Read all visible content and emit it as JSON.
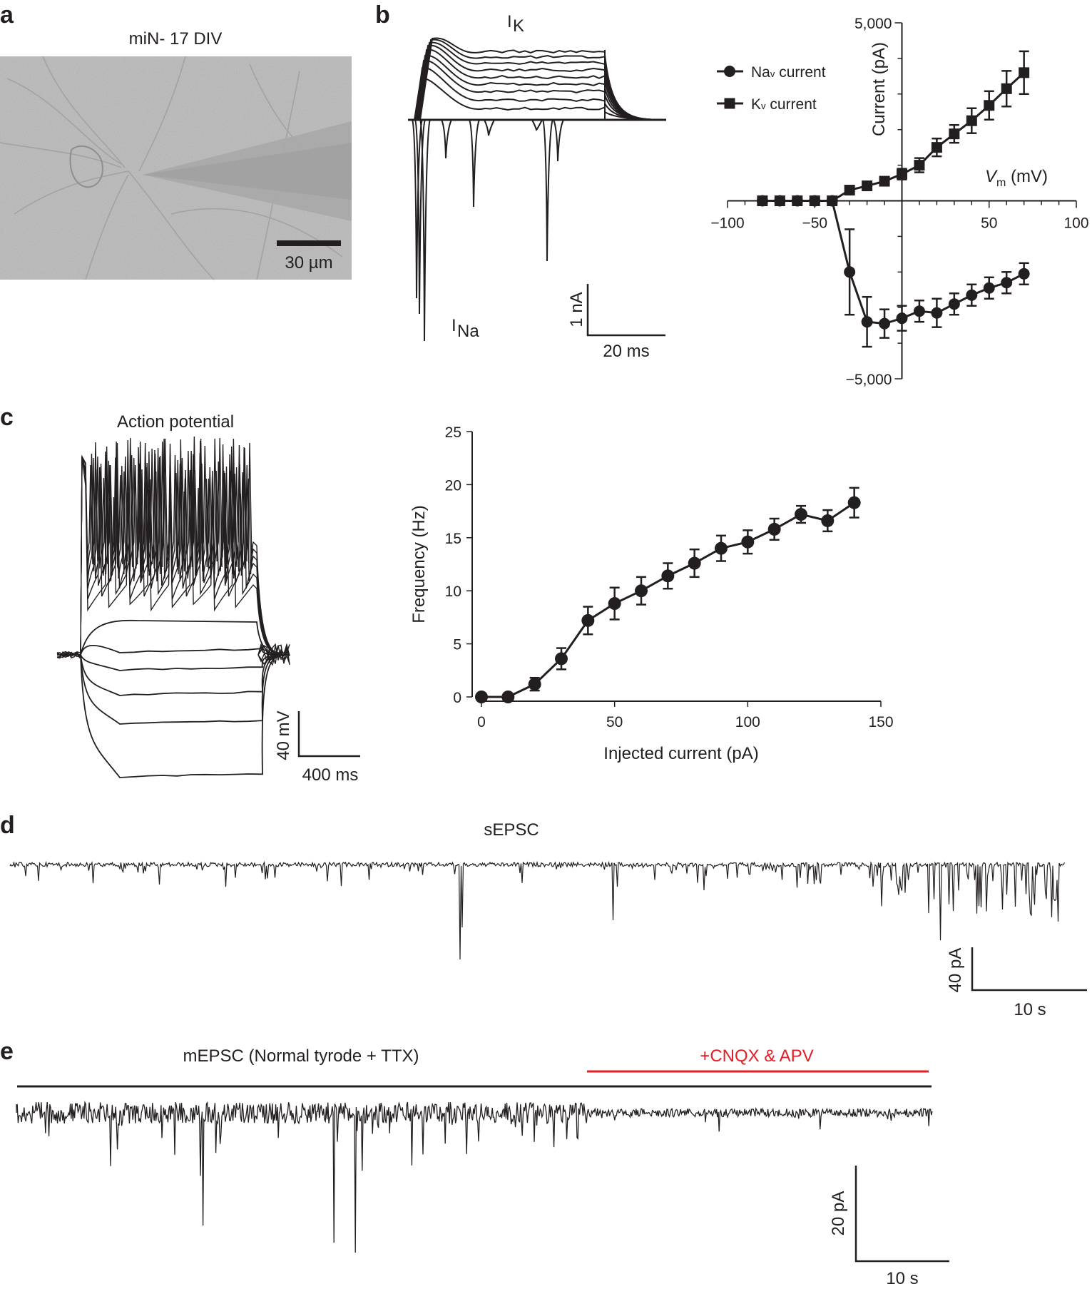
{
  "panels": {
    "a": {
      "label": "a",
      "title": "miN- 17 DIV",
      "scalebar": "30 µm"
    },
    "b": {
      "label": "b",
      "trace_ik_label": "I",
      "trace_ik_sub": "K",
      "trace_ina_label": "I",
      "trace_ina_sub": "Na",
      "scalebar_y": "1 nA",
      "scalebar_x": "20 ms"
    },
    "c": {
      "label": "c",
      "title": "Action potential",
      "scalebar_y": "40 mV",
      "scalebar_x": "400 ms"
    },
    "d": {
      "label": "d",
      "title": "sEPSC",
      "scalebar_y": "40 pA",
      "scalebar_x": "10 s"
    },
    "e": {
      "label": "e",
      "title": "mEPSC (Normal tyrode + TTX)",
      "drug_label": "+CNQX & APV",
      "drug_color": "#e31e24",
      "scalebar_y": "20 pA",
      "scalebar_x": "10 s"
    }
  },
  "colors": {
    "ink": "#231f20",
    "accent": "#e31e24",
    "image_bg": "#b9b9b9"
  },
  "chart_data": [
    {
      "id": "iv",
      "type": "line",
      "xlabel_main": "V",
      "xlabel_sub": "m",
      "xlabel_unit": " (mV)",
      "ylabel": "Current (pA)",
      "xlim": [
        -100,
        100
      ],
      "ylim": [
        -5000,
        5000
      ],
      "xticks": [
        -100,
        -50,
        50,
        100
      ],
      "xtick_labels": [
        "−100",
        "−50",
        "50",
        "100"
      ],
      "yticks": [
        -5000,
        5000
      ],
      "ytick_labels": [
        "−5,000",
        "5,000"
      ],
      "legend_position": "top-left",
      "series": [
        {
          "name_main": "Na",
          "name_sub": "v",
          "name_rest": " current",
          "marker": "circle",
          "x": [
            -80,
            -70,
            -60,
            -50,
            -40,
            -30,
            -20,
            -10,
            0,
            10,
            20,
            30,
            40,
            50,
            60,
            70
          ],
          "y": [
            0,
            0,
            0,
            0,
            0,
            -2000,
            -3400,
            -3450,
            -3300,
            -3100,
            -3150,
            -2900,
            -2650,
            -2450,
            -2300,
            -2050
          ],
          "err": [
            0,
            0,
            0,
            0,
            0,
            1200,
            700,
            400,
            350,
            300,
            400,
            300,
            300,
            300,
            300,
            300
          ]
        },
        {
          "name_main": "K",
          "name_sub": "v",
          "name_rest": " current",
          "marker": "square",
          "x": [
            -80,
            -70,
            -60,
            -50,
            -40,
            -30,
            -20,
            -10,
            0,
            10,
            20,
            30,
            40,
            50,
            60,
            70
          ],
          "y": [
            0,
            0,
            0,
            0,
            0,
            300,
            420,
            550,
            750,
            1000,
            1500,
            1880,
            2250,
            2680,
            3150,
            3600
          ],
          "err": [
            0,
            0,
            0,
            0,
            0,
            50,
            60,
            70,
            150,
            200,
            250,
            250,
            350,
            400,
            500,
            600
          ]
        }
      ]
    },
    {
      "id": "fi",
      "type": "line",
      "xlabel": "Injected current (pA)",
      "ylabel": "Frequency (Hz)",
      "xlim": [
        0,
        150
      ],
      "ylim": [
        0,
        25
      ],
      "xticks": [
        0,
        50,
        100,
        150
      ],
      "yticks": [
        0,
        5,
        10,
        15,
        20,
        25
      ],
      "series": [
        {
          "x": [
            0,
            10,
            20,
            30,
            40,
            50,
            60,
            70,
            80,
            90,
            100,
            110,
            120,
            130,
            140
          ],
          "y": [
            0,
            0,
            1.2,
            3.6,
            7.2,
            8.8,
            10.0,
            11.4,
            12.6,
            14.0,
            14.6,
            15.8,
            17.2,
            16.6,
            18.3
          ],
          "err": [
            0,
            0,
            0.6,
            1.0,
            1.3,
            1.5,
            1.3,
            1.2,
            1.3,
            1.2,
            1.1,
            1.0,
            0.8,
            1.0,
            1.4
          ]
        }
      ]
    }
  ]
}
